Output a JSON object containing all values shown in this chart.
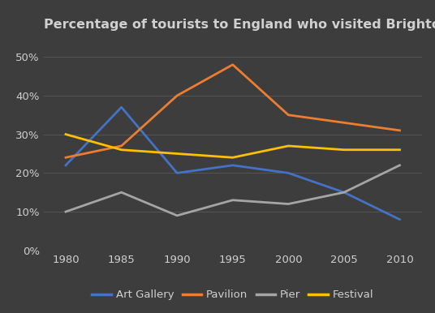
{
  "title": "Percentage of tourists to England who visited Brighton attractions",
  "years": [
    1980,
    1985,
    1990,
    1995,
    2000,
    2005,
    2010
  ],
  "series": {
    "Art Gallery": {
      "values": [
        22,
        37,
        20,
        22,
        20,
        15,
        8
      ],
      "color": "#4472C4"
    },
    "Pavilion": {
      "values": [
        24,
        27,
        40,
        48,
        35,
        33,
        31
      ],
      "color": "#ED7D31"
    },
    "Pier": {
      "values": [
        10,
        15,
        9,
        13,
        12,
        15,
        22
      ],
      "color": "#A5A5A5"
    },
    "Festival": {
      "values": [
        30,
        26,
        25,
        24,
        27,
        26,
        26
      ],
      "color": "#FFC000"
    }
  },
  "ylim": [
    0,
    55
  ],
  "yticks": [
    0,
    10,
    20,
    30,
    40,
    50
  ],
  "ytick_labels": [
    "0%",
    "10%",
    "20%",
    "30%",
    "40%",
    "50%"
  ],
  "background_color": "#3d3d3d",
  "grid_color": "#555555",
  "text_color": "#d0d0d0",
  "title_fontsize": 11.5,
  "tick_fontsize": 9.5,
  "legend_fontsize": 9.5,
  "linewidth": 2.0
}
